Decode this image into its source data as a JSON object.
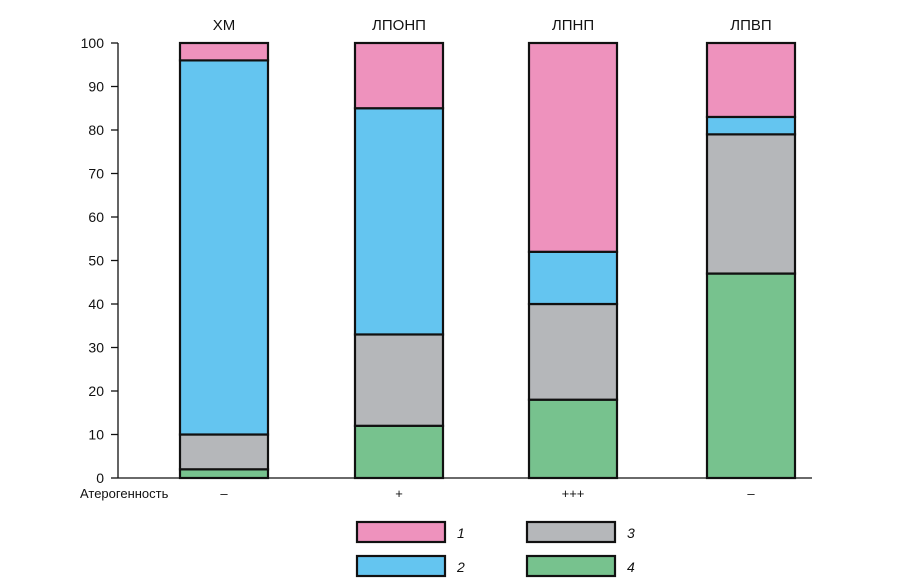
{
  "chart_data": {
    "type": "bar",
    "stacked": true,
    "categories": [
      "ХМ",
      "ЛПОНП",
      "ЛПНП",
      "ЛПВП"
    ],
    "series": [
      {
        "name": "4",
        "color": "#77c28e",
        "values": [
          2,
          12,
          18,
          47
        ]
      },
      {
        "name": "3",
        "color": "#b5b7ba",
        "values": [
          8,
          21,
          22,
          32
        ]
      },
      {
        "name": "2",
        "color": "#64c5f0",
        "values": [
          86,
          52,
          12,
          4
        ]
      },
      {
        "name": "1",
        "color": "#ee92bd",
        "values": [
          5,
          16,
          49,
          18
        ]
      }
    ],
    "y_ticks": [
      "0",
      "10",
      "20",
      "30",
      "40",
      "50",
      "60",
      "70",
      "80",
      "90",
      "100"
    ],
    "ylim": [
      0,
      100
    ],
    "atherogenicity": {
      "label": "Атерогенность",
      "values": [
        "–",
        "+",
        "+++",
        "–"
      ]
    },
    "legend_order": [
      "1",
      "3",
      "2",
      "4"
    ],
    "legend_placement": "bottom",
    "grid": false
  }
}
